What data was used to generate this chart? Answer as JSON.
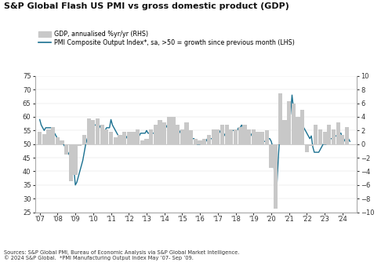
{
  "title": "S&P Global Flash US PMI vs gross domestic product (GDP)",
  "legend_gdp": "GDP, annualised %yr/yr (RHS)",
  "legend_pmi": "PMI Composite Output Index*, sa, >50 = growth since previous month (LHS)",
  "source_text": "Sources: S&P Global PMI, Bureau of Economic Analysis via S&P Global Market Intelligence.\n© 2024 S&P Global.  *PMI Manufacturing Output Index May ’07- Sep ’09.",
  "left_ylim": [
    25,
    75
  ],
  "left_yticks": [
    25,
    30,
    35,
    40,
    45,
    50,
    55,
    60,
    65,
    70,
    75
  ],
  "right_ylim": [
    -10,
    10
  ],
  "right_yticks": [
    -10,
    -8,
    -6,
    -4,
    -2,
    0,
    2,
    4,
    6,
    8,
    10
  ],
  "bg_color": "#ffffff",
  "bar_color": "#c8c8c8",
  "line_color": "#1a7090",
  "years_x": [
    "07",
    "08",
    "09",
    "10",
    "11",
    "12",
    "13",
    "14",
    "15",
    "16",
    "17",
    "18",
    "19",
    "20",
    "21",
    "22",
    "23",
    "24"
  ],
  "gdp_quarters": [
    2007.0,
    2007.25,
    2007.5,
    2007.75,
    2008.0,
    2008.25,
    2008.5,
    2008.75,
    2009.0,
    2009.25,
    2009.5,
    2009.75,
    2010.0,
    2010.25,
    2010.5,
    2010.75,
    2011.0,
    2011.25,
    2011.5,
    2011.75,
    2012.0,
    2012.25,
    2012.5,
    2012.75,
    2013.0,
    2013.25,
    2013.5,
    2013.75,
    2014.0,
    2014.25,
    2014.5,
    2014.75,
    2015.0,
    2015.25,
    2015.5,
    2015.75,
    2016.0,
    2016.25,
    2016.5,
    2016.75,
    2017.0,
    2017.25,
    2017.5,
    2017.75,
    2018.0,
    2018.25,
    2018.5,
    2018.75,
    2019.0,
    2019.25,
    2019.5,
    2019.75,
    2020.0,
    2020.25,
    2020.5,
    2020.75,
    2021.0,
    2021.25,
    2021.5,
    2021.75,
    2022.0,
    2022.25,
    2022.5,
    2022.75,
    2023.0,
    2023.25,
    2023.5,
    2023.75,
    2024.0,
    2024.25
  ],
  "gdp_values": [
    1.8,
    1.5,
    2.2,
    2.5,
    1.0,
    0.5,
    -1.5,
    -5.5,
    -4.5,
    -0.3,
    1.3,
    3.8,
    3.5,
    3.8,
    2.8,
    2.2,
    1.8,
    1.0,
    1.3,
    1.8,
    1.8,
    1.8,
    2.2,
    0.5,
    0.8,
    2.2,
    2.8,
    3.5,
    3.2,
    4.0,
    4.0,
    2.8,
    2.2,
    3.2,
    2.0,
    0.8,
    0.5,
    0.8,
    1.3,
    2.2,
    2.2,
    2.8,
    2.8,
    2.2,
    2.2,
    2.5,
    2.8,
    2.2,
    2.2,
    1.8,
    1.8,
    2.0,
    -3.5,
    -9.5,
    7.5,
    3.5,
    6.3,
    6.0,
    4.0,
    5.0,
    -1.2,
    -0.3,
    2.8,
    2.2,
    1.8,
    2.8,
    2.2,
    3.2,
    1.3,
    2.5
  ],
  "pmi_dates": [
    2007.0,
    2007.083,
    2007.167,
    2007.25,
    2007.333,
    2007.417,
    2007.5,
    2007.583,
    2007.667,
    2007.75,
    2007.833,
    2007.917,
    2008.0,
    2008.083,
    2008.167,
    2008.25,
    2008.333,
    2008.417,
    2008.5,
    2008.583,
    2008.667,
    2008.75,
    2008.833,
    2008.917,
    2009.0,
    2009.083,
    2009.167,
    2009.25,
    2009.333,
    2009.417,
    2009.5,
    2009.583,
    2009.667,
    2009.75,
    2009.833,
    2009.917,
    2010.0,
    2010.083,
    2010.167,
    2010.25,
    2010.333,
    2010.417,
    2010.5,
    2010.583,
    2010.667,
    2010.75,
    2010.833,
    2010.917,
    2011.0,
    2011.083,
    2011.167,
    2011.25,
    2011.333,
    2011.417,
    2011.5,
    2011.583,
    2011.667,
    2011.75,
    2011.833,
    2011.917,
    2012.0,
    2012.083,
    2012.167,
    2012.25,
    2012.333,
    2012.417,
    2012.5,
    2012.583,
    2012.667,
    2012.75,
    2012.833,
    2012.917,
    2013.0,
    2013.083,
    2013.167,
    2013.25,
    2013.333,
    2013.417,
    2013.5,
    2013.583,
    2013.667,
    2013.75,
    2013.833,
    2013.917,
    2014.0,
    2014.083,
    2014.167,
    2014.25,
    2014.333,
    2014.417,
    2014.5,
    2014.583,
    2014.667,
    2014.75,
    2014.833,
    2014.917,
    2015.0,
    2015.083,
    2015.167,
    2015.25,
    2015.333,
    2015.417,
    2015.5,
    2015.583,
    2015.667,
    2015.75,
    2015.833,
    2015.917,
    2016.0,
    2016.083,
    2016.167,
    2016.25,
    2016.333,
    2016.417,
    2016.5,
    2016.583,
    2016.667,
    2016.75,
    2016.833,
    2016.917,
    2017.0,
    2017.083,
    2017.167,
    2017.25,
    2017.333,
    2017.417,
    2017.5,
    2017.583,
    2017.667,
    2017.75,
    2017.833,
    2017.917,
    2018.0,
    2018.083,
    2018.167,
    2018.25,
    2018.333,
    2018.417,
    2018.5,
    2018.583,
    2018.667,
    2018.75,
    2018.833,
    2018.917,
    2019.0,
    2019.083,
    2019.167,
    2019.25,
    2019.333,
    2019.417,
    2019.5,
    2019.583,
    2019.667,
    2019.75,
    2019.833,
    2019.917,
    2020.0,
    2020.083,
    2020.167,
    2020.25,
    2020.333,
    2020.417,
    2020.5,
    2020.583,
    2020.667,
    2020.75,
    2020.833,
    2020.917,
    2021.0,
    2021.083,
    2021.167,
    2021.25,
    2021.333,
    2021.417,
    2021.5,
    2021.583,
    2021.667,
    2021.75,
    2021.833,
    2021.917,
    2022.0,
    2022.083,
    2022.167,
    2022.25,
    2022.333,
    2022.417,
    2022.5,
    2022.583,
    2022.667,
    2022.75,
    2022.833,
    2022.917,
    2023.0,
    2023.083,
    2023.167,
    2023.25,
    2023.333,
    2023.417,
    2023.5,
    2023.583,
    2023.667,
    2023.75,
    2023.833,
    2023.917,
    2024.0,
    2024.083,
    2024.167,
    2024.25,
    2024.333,
    2024.417
  ],
  "pmi_values": [
    59,
    57,
    56,
    55,
    56,
    56,
    56,
    56,
    56,
    55,
    54,
    53,
    52,
    51,
    51,
    51,
    50,
    49,
    48,
    47,
    46,
    45,
    43,
    41,
    35,
    36,
    38,
    40,
    42,
    44,
    47,
    50,
    52,
    53,
    54,
    55,
    56,
    57,
    57,
    58,
    57,
    56,
    55,
    55,
    55,
    56,
    56,
    56,
    59,
    57,
    56,
    55,
    54,
    53,
    51,
    51,
    51,
    52,
    52,
    53,
    53,
    53,
    54,
    53,
    53,
    52,
    52,
    53,
    54,
    54,
    54,
    54,
    55,
    54,
    54,
    53,
    54,
    54,
    54,
    55,
    55,
    54,
    54,
    55,
    56,
    56,
    57,
    57,
    58,
    57,
    57,
    57,
    56,
    55,
    55,
    54,
    54,
    54,
    54,
    54,
    53,
    53,
    52,
    52,
    52,
    51,
    50,
    50,
    50,
    51,
    51,
    51,
    51,
    52,
    52,
    52,
    52,
    53,
    54,
    54,
    55,
    55,
    54,
    54,
    54,
    53,
    54,
    55,
    55,
    55,
    55,
    55,
    55,
    55,
    56,
    56,
    57,
    56,
    55,
    55,
    55,
    54,
    54,
    53,
    54,
    53,
    53,
    52,
    52,
    53,
    52,
    51,
    51,
    51,
    52,
    52,
    51,
    49,
    40,
    27,
    37,
    47,
    55,
    56,
    55,
    56,
    57,
    58,
    59,
    61,
    68,
    63,
    60,
    58,
    56,
    55,
    54,
    55,
    56,
    55,
    54,
    53,
    52,
    53,
    49,
    47,
    47,
    47,
    47,
    48,
    49,
    50,
    50,
    50,
    51,
    52,
    52,
    52,
    52,
    53,
    53,
    53,
    54,
    54,
    51,
    51,
    52,
    52,
    52,
    51
  ]
}
